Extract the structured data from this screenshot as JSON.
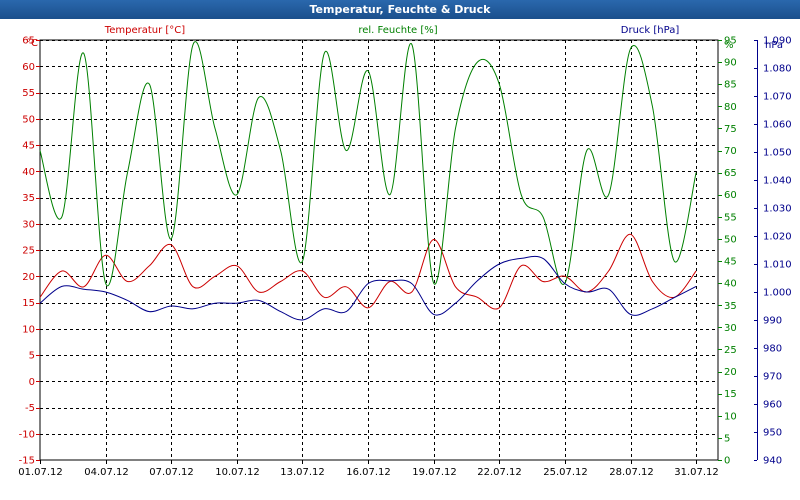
{
  "window": {
    "title": "Temperatur, Feuchte & Druck"
  },
  "chart_data": {
    "type": "line",
    "title": "Temperatur, Feuchte & Druck",
    "x_axis": {
      "ticks": [
        "01.07.12",
        "04.07.12",
        "07.07.12",
        "10.07.12",
        "13.07.12",
        "16.07.12",
        "19.07.12",
        "22.07.12",
        "25.07.12",
        "28.07.12",
        "31.07.12"
      ],
      "tick_days": [
        1,
        4,
        7,
        10,
        13,
        16,
        19,
        22,
        25,
        28,
        31
      ],
      "range_days": [
        1,
        32
      ]
    },
    "axes": {
      "temperature": {
        "unit_label": "°C",
        "range": [
          -15,
          65
        ],
        "step": 5,
        "ticks": [
          "-15",
          "-10",
          "-5",
          "0",
          "5",
          "10",
          "15",
          "20",
          "25",
          "30",
          "35",
          "40",
          "45",
          "50",
          "55",
          "60",
          "65"
        ],
        "color": "#cc0000",
        "position": "left"
      },
      "humidity": {
        "unit_label": "%",
        "range": [
          0,
          95
        ],
        "step": 5,
        "ticks": [
          "0",
          "5",
          "10",
          "15",
          "20",
          "25",
          "30",
          "35",
          "40",
          "45",
          "50",
          "55",
          "60",
          "65",
          "70",
          "75",
          "80",
          "85",
          "90",
          "95"
        ],
        "color": "#008000",
        "position": "middle-right"
      },
      "pressure": {
        "unit_label": "hPa",
        "range": [
          940,
          1090
        ],
        "step": 10,
        "ticks": [
          "940",
          "950",
          "960",
          "970",
          "980",
          "990",
          "1.000",
          "1.010",
          "1.020",
          "1.030",
          "1.040",
          "1.050",
          "1.060",
          "1.070",
          "1.080",
          "1.090"
        ],
        "color": "#00008b",
        "position": "right"
      }
    },
    "grid": true,
    "series": [
      {
        "name": "Temperatur [°C]",
        "axis": "temperature",
        "color": "#cc0000",
        "x": [
          1,
          2,
          3,
          4,
          5,
          6,
          7,
          8,
          9,
          10,
          11,
          12,
          13,
          14,
          15,
          16,
          17,
          18,
          19,
          20,
          21,
          22,
          23,
          24,
          25,
          26,
          27,
          28,
          29,
          30,
          31
        ],
        "y": [
          16,
          21,
          18,
          24,
          19,
          22,
          26,
          18,
          20,
          22,
          17,
          19,
          21,
          16,
          18,
          14,
          19,
          17,
          27,
          18,
          16,
          14,
          22,
          19,
          20,
          17,
          21,
          28,
          19,
          16,
          21
        ]
      },
      {
        "name": "rel. Feuchte [%]",
        "axis": "humidity",
        "color": "#008000",
        "x": [
          1,
          2,
          3,
          4,
          5,
          6,
          7,
          8,
          9,
          10,
          11,
          12,
          13,
          14,
          15,
          16,
          17,
          18,
          19,
          20,
          21,
          22,
          23,
          24,
          25,
          26,
          27,
          28,
          29,
          30,
          31
        ],
        "y": [
          70,
          55,
          92,
          40,
          65,
          85,
          50,
          94,
          75,
          60,
          82,
          70,
          45,
          92,
          70,
          88,
          60,
          94,
          40,
          75,
          90,
          85,
          60,
          55,
          40,
          70,
          60,
          93,
          80,
          45,
          65
        ]
      },
      {
        "name": "Druck [hPa]",
        "axis": "pressure",
        "color": "#00008b",
        "x": [
          1,
          2,
          3,
          4,
          5,
          6,
          7,
          8,
          9,
          10,
          11,
          12,
          13,
          14,
          15,
          16,
          17,
          18,
          19,
          20,
          21,
          22,
          23,
          24,
          25,
          26,
          27,
          28,
          29,
          30,
          31
        ],
        "y": [
          996,
          1002,
          1001,
          1000,
          997,
          993,
          995,
          994,
          996,
          996,
          997,
          993,
          990,
          994,
          993,
          1003,
          1004,
          1003,
          992,
          996,
          1004,
          1010,
          1012,
          1012,
          1003,
          1000,
          1001,
          992,
          994,
          998,
          1002
        ]
      }
    ]
  }
}
